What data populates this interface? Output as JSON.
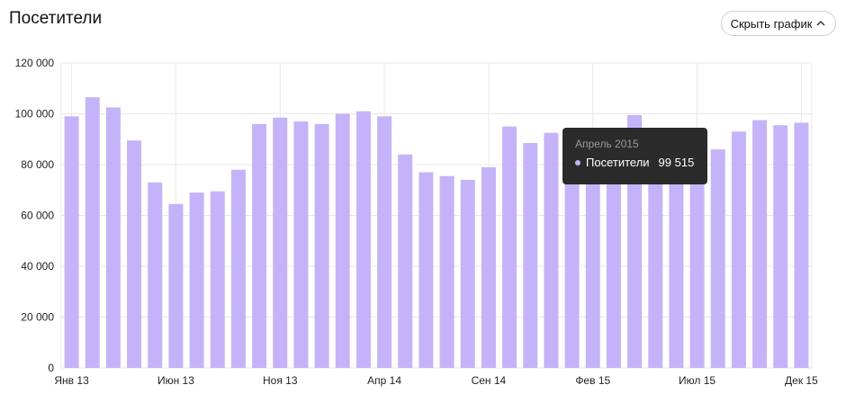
{
  "page": {
    "title": "Посетители",
    "toggle_label": "Скрыть график",
    "toggle_icon": "chevron-up-icon"
  },
  "tooltip": {
    "period": "Апрель 2015",
    "series_label": "Посетители",
    "value": "99 515"
  },
  "colors": {
    "bar": "#c5b3f9",
    "grid": "#e8e8e8",
    "tooltip_bg": "#2b2b2b"
  },
  "chart_data": {
    "type": "bar",
    "title": "",
    "xlabel": "",
    "ylabel": "",
    "ylim": [
      0,
      120000
    ],
    "yticks": [
      0,
      20000,
      40000,
      60000,
      80000,
      100000,
      120000
    ],
    "ytick_labels": [
      "0",
      "20 000",
      "40 000",
      "60 000",
      "80 000",
      "100 000",
      "120 000"
    ],
    "categories": [
      "Янв 13",
      "Фев 13",
      "Мар 13",
      "Апр 13",
      "Май 13",
      "Июн 13",
      "Июл 13",
      "Авг 13",
      "Сен 13",
      "Окт 13",
      "Ноя 13",
      "Дек 13",
      "Янв 14",
      "Фев 14",
      "Мар 14",
      "Апр 14",
      "Май 14",
      "Июн 14",
      "Июл 14",
      "Авг 14",
      "Сен 14",
      "Окт 14",
      "Ноя 14",
      "Дек 14",
      "Янв 15",
      "Фев 15",
      "Мар 15",
      "Апр 15",
      "Май 15",
      "Июн 15",
      "Июл 15",
      "Авг 15",
      "Сен 15",
      "Окт 15",
      "Ноя 15",
      "Дек 15"
    ],
    "x_tick_labels": [
      {
        "index": 0,
        "label": "Янв 13"
      },
      {
        "index": 5,
        "label": "Июн 13"
      },
      {
        "index": 10,
        "label": "Ноя 13"
      },
      {
        "index": 15,
        "label": "Апр 14"
      },
      {
        "index": 20,
        "label": "Сен 14"
      },
      {
        "index": 25,
        "label": "Фев 15"
      },
      {
        "index": 30,
        "label": "Июл 15"
      },
      {
        "index": 35,
        "label": "Дек 15"
      }
    ],
    "series": [
      {
        "name": "Посетители",
        "values": [
          99000,
          106500,
          102500,
          89500,
          73000,
          64500,
          69000,
          69500,
          78000,
          96000,
          98500,
          97000,
          96000,
          100000,
          101000,
          99000,
          84000,
          77000,
          75500,
          74000,
          79000,
          95000,
          88500,
          92500,
          91000,
          82000,
          84500,
          99515,
          88000,
          80000,
          82000,
          86000,
          93000,
          97500,
          95500,
          96500
        ]
      }
    ],
    "grid": true,
    "legend": "none"
  }
}
